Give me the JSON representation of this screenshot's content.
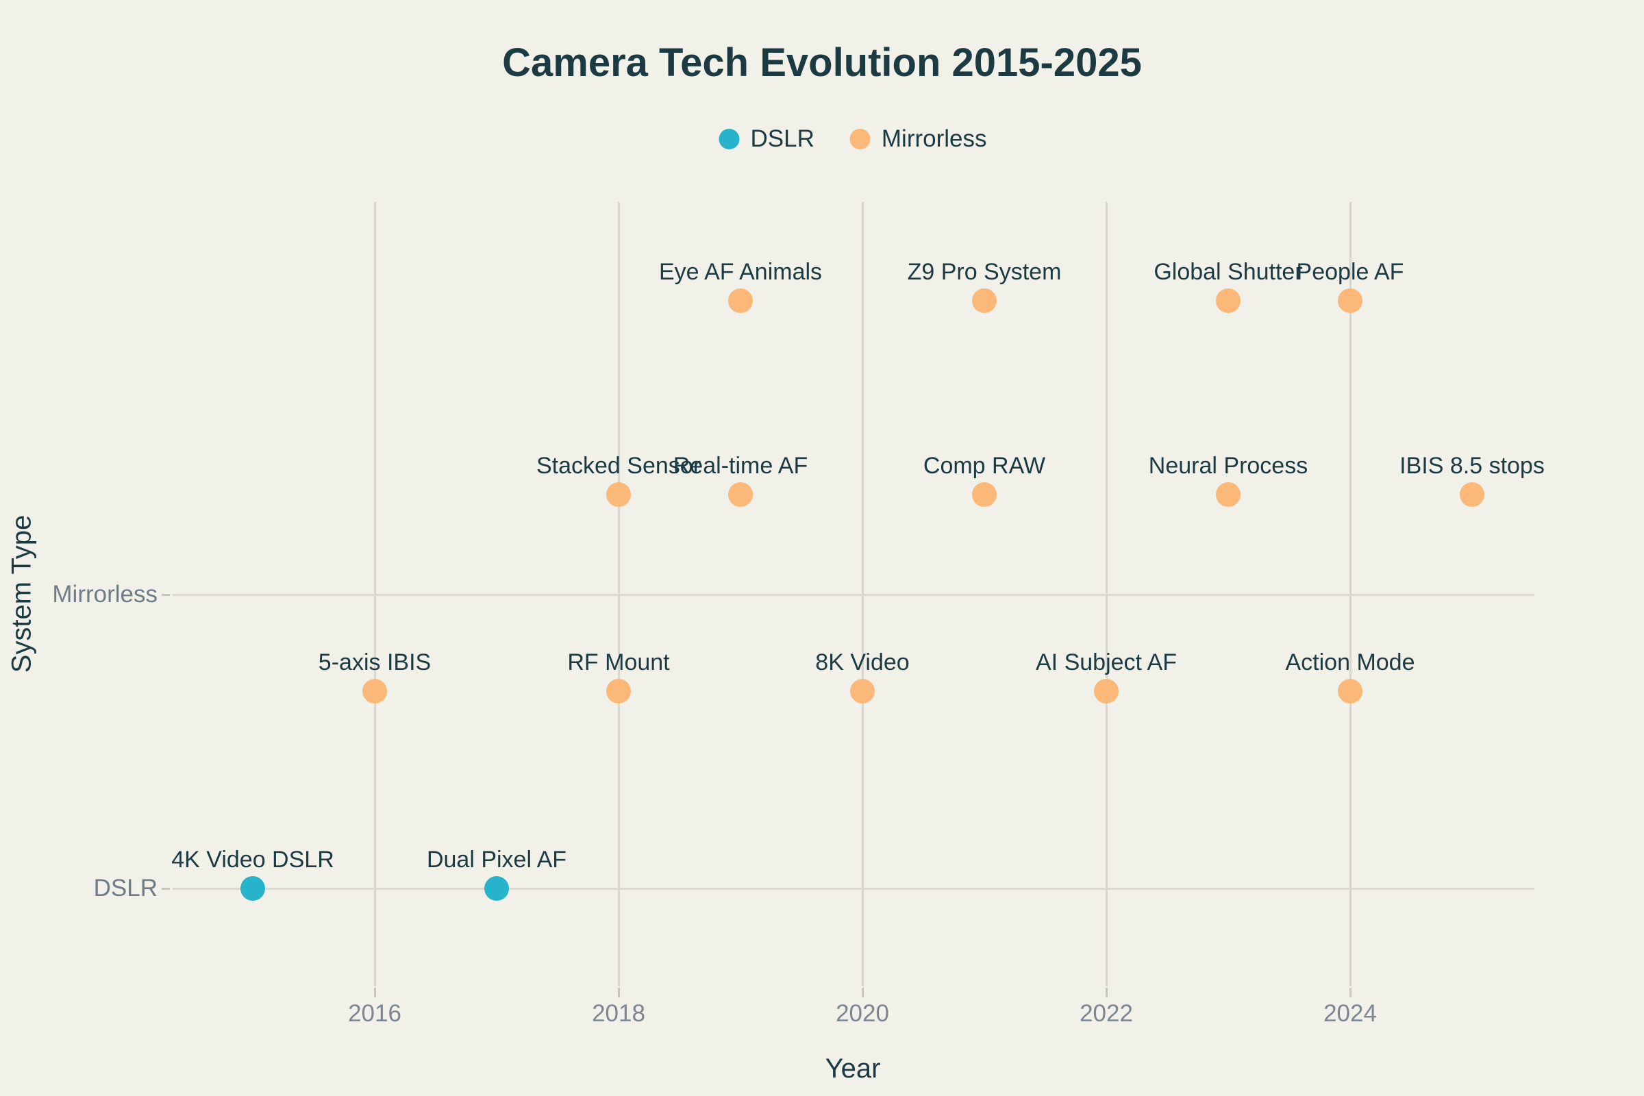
{
  "page": {
    "background_color": "#f1f0e9",
    "text_dark_color": "#1c3a42",
    "text_gray_color": "#7d868e",
    "gridline_color": "#d9d6cf"
  },
  "chart_data": {
    "type": "scatter",
    "title": "Camera Tech Evolution 2015-2025",
    "xlabel": "Year",
    "ylabel": "System Type",
    "x_ticks": [
      2016,
      2018,
      2020,
      2022,
      2024
    ],
    "x_range": [
      2014.3,
      2025.5
    ],
    "y_categories": [
      "Mirrorless",
      "DSLR"
    ],
    "grid": true,
    "legend_position": "top-center",
    "series": [
      {
        "name": "DSLR",
        "color": "#27b4ca",
        "points": [
          {
            "label": "4K Video DSLR",
            "year": 2015,
            "row": "base"
          },
          {
            "label": "Dual Pixel AF",
            "year": 2017,
            "row": "base"
          }
        ]
      },
      {
        "name": "Mirrorless",
        "color": "#fcb878",
        "points": [
          {
            "label": "5-axis IBIS",
            "year": 2016,
            "row": "low"
          },
          {
            "label": "RF Mount",
            "year": 2018,
            "row": "low"
          },
          {
            "label": "8K Video",
            "year": 2020,
            "row": "low"
          },
          {
            "label": "AI Subject AF",
            "year": 2022,
            "row": "low"
          },
          {
            "label": "Action Mode",
            "year": 2024,
            "row": "low"
          },
          {
            "label": "Stacked Sensor",
            "year": 2018,
            "row": "mid"
          },
          {
            "label": "Real-time AF",
            "year": 2019,
            "row": "mid"
          },
          {
            "label": "Comp RAW",
            "year": 2021,
            "row": "mid"
          },
          {
            "label": "Neural Process",
            "year": 2023,
            "row": "mid"
          },
          {
            "label": "IBIS 8.5 stops",
            "year": 2025,
            "row": "mid"
          },
          {
            "label": "Eye AF Animals",
            "year": 2019,
            "row": "high"
          },
          {
            "label": "Z9 Pro System",
            "year": 2021,
            "row": "high"
          },
          {
            "label": "Global Shutter",
            "year": 2023,
            "row": "high"
          },
          {
            "label": "People AF",
            "year": 2024,
            "row": "high"
          }
        ]
      }
    ]
  }
}
